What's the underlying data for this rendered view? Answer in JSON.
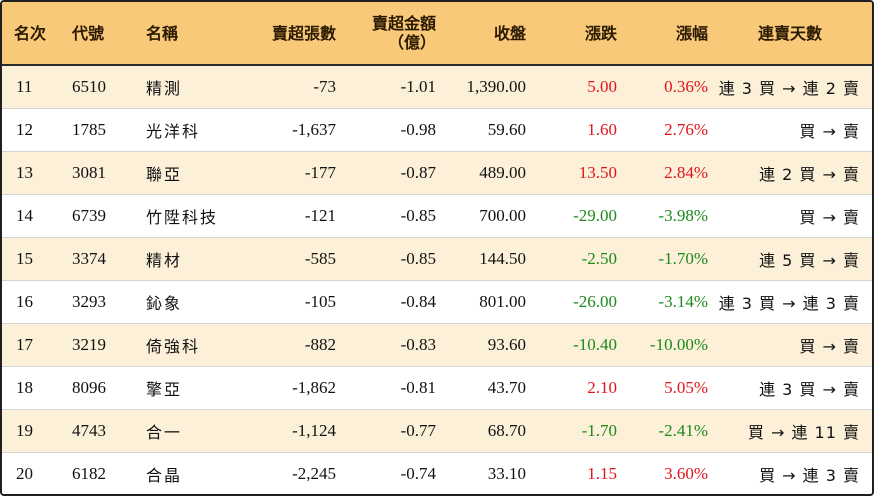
{
  "columns": {
    "rank": "名次",
    "code": "代號",
    "name": "名稱",
    "net_sell_shares": "賣超張數",
    "net_sell_amount_1": "賣超金額",
    "net_sell_amount_2": "（億）",
    "close": "收盤",
    "change": "漲跌",
    "change_pct": "漲幅",
    "streak": "連賣天數"
  },
  "colors": {
    "header_bg": "#f9c97a",
    "odd_row_bg": "#fdf0d8",
    "up": "#e0141b",
    "down": "#1b8a1b"
  },
  "rows": [
    {
      "rank": "11",
      "code": "6510",
      "name": "精測",
      "shares": "-73",
      "amount": "-1.01",
      "close": "1,390.00",
      "change": "5.00",
      "pct": "0.36%",
      "dir": "up",
      "streak": "連 3 買 → 連 2 賣"
    },
    {
      "rank": "12",
      "code": "1785",
      "name": "光洋科",
      "shares": "-1,637",
      "amount": "-0.98",
      "close": "59.60",
      "change": "1.60",
      "pct": "2.76%",
      "dir": "up",
      "streak": "買 → 賣"
    },
    {
      "rank": "13",
      "code": "3081",
      "name": "聯亞",
      "shares": "-177",
      "amount": "-0.87",
      "close": "489.00",
      "change": "13.50",
      "pct": "2.84%",
      "dir": "up",
      "streak": "連 2 買 → 賣"
    },
    {
      "rank": "14",
      "code": "6739",
      "name": "竹陞科技",
      "shares": "-121",
      "amount": "-0.85",
      "close": "700.00",
      "change": "-29.00",
      "pct": "-3.98%",
      "dir": "down",
      "streak": "買 → 賣"
    },
    {
      "rank": "15",
      "code": "3374",
      "name": "精材",
      "shares": "-585",
      "amount": "-0.85",
      "close": "144.50",
      "change": "-2.50",
      "pct": "-1.70%",
      "dir": "down",
      "streak": "連 5 買 → 賣"
    },
    {
      "rank": "16",
      "code": "3293",
      "name": "鈊象",
      "shares": "-105",
      "amount": "-0.84",
      "close": "801.00",
      "change": "-26.00",
      "pct": "-3.14%",
      "dir": "down",
      "streak": "連 3 買 → 連 3 賣"
    },
    {
      "rank": "17",
      "code": "3219",
      "name": "倚強科",
      "shares": "-882",
      "amount": "-0.83",
      "close": "93.60",
      "change": "-10.40",
      "pct": "-10.00%",
      "dir": "down",
      "streak": "買 → 賣"
    },
    {
      "rank": "18",
      "code": "8096",
      "name": "擎亞",
      "shares": "-1,862",
      "amount": "-0.81",
      "close": "43.70",
      "change": "2.10",
      "pct": "5.05%",
      "dir": "up",
      "streak": "連 3 買 → 賣"
    },
    {
      "rank": "19",
      "code": "4743",
      "name": "合一",
      "shares": "-1,124",
      "amount": "-0.77",
      "close": "68.70",
      "change": "-1.70",
      "pct": "-2.41%",
      "dir": "down",
      "streak": "買 → 連 11 賣"
    },
    {
      "rank": "20",
      "code": "6182",
      "name": "合晶",
      "shares": "-2,245",
      "amount": "-0.74",
      "close": "33.10",
      "change": "1.15",
      "pct": "3.60%",
      "dir": "up",
      "streak": "買 → 連 3 賣"
    }
  ]
}
